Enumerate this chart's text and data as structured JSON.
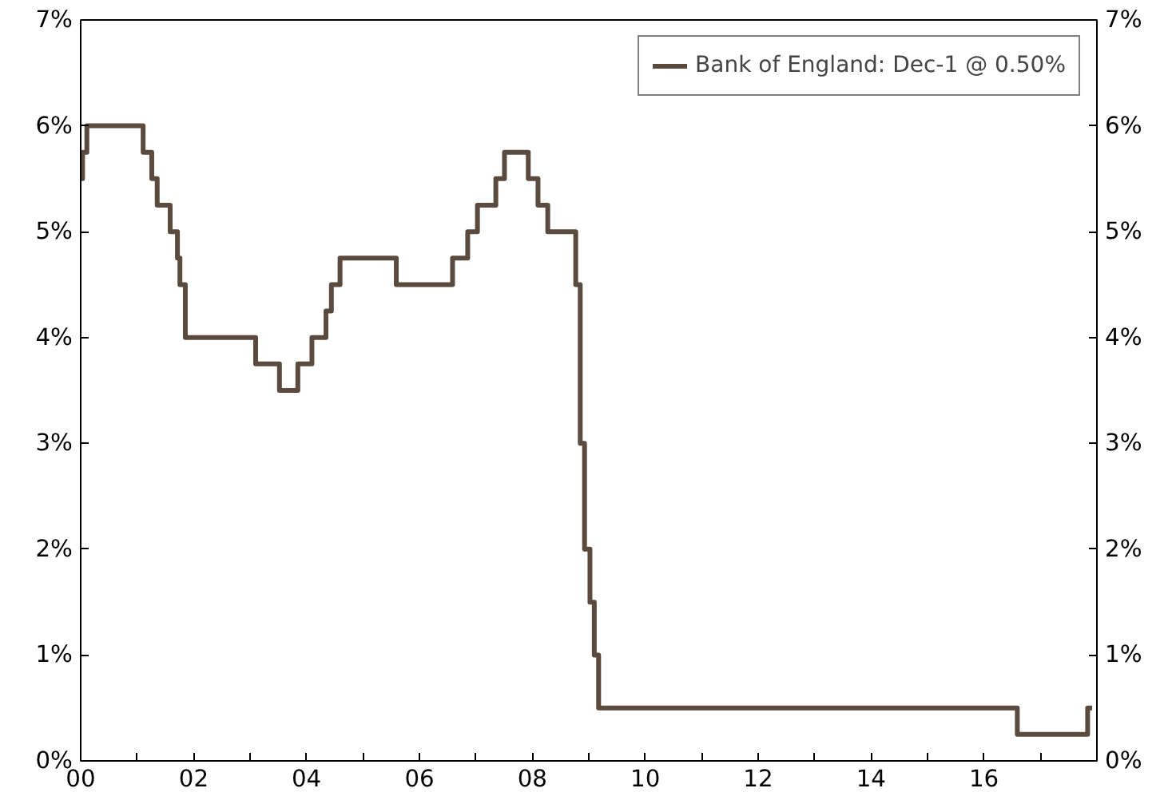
{
  "chart_data": {
    "type": "step",
    "legend": "top right",
    "grid": false,
    "xlim": [
      "2000-01-01",
      "2018-01-01"
    ],
    "xticks": [
      {
        "value": "2000-01-01",
        "label": "00"
      },
      {
        "value": "2001-01-01",
        "label": null
      },
      {
        "value": "2002-01-01",
        "label": "02"
      },
      {
        "value": "2003-01-01",
        "label": null
      },
      {
        "value": "2004-01-01",
        "label": "04"
      },
      {
        "value": "2005-01-01",
        "label": null
      },
      {
        "value": "2006-01-01",
        "label": "06"
      },
      {
        "value": "2007-01-01",
        "label": null
      },
      {
        "value": "2008-01-01",
        "label": "08"
      },
      {
        "value": "2009-01-01",
        "label": null
      },
      {
        "value": "2010-01-01",
        "label": "10"
      },
      {
        "value": "2011-01-01",
        "label": null
      },
      {
        "value": "2012-01-01",
        "label": "12"
      },
      {
        "value": "2013-01-01",
        "label": null
      },
      {
        "value": "2014-01-01",
        "label": "14"
      },
      {
        "value": "2015-01-01",
        "label": null
      },
      {
        "value": "2016-01-01",
        "label": "16"
      },
      {
        "value": "2017-01-01",
        "label": null
      }
    ],
    "ylim": [
      0,
      7
    ],
    "yticks": [
      {
        "value": 0,
        "label": "0%"
      },
      {
        "value": 1,
        "label": "1%"
      },
      {
        "value": 2,
        "label": "2%"
      },
      {
        "value": 3,
        "label": "3%"
      },
      {
        "value": 4,
        "label": "4%"
      },
      {
        "value": 5,
        "label": "5%"
      },
      {
        "value": 6,
        "label": "6%"
      },
      {
        "value": 7,
        "label": "7%"
      }
    ],
    "y2lim": [
      0,
      7
    ],
    "y2ticks": [
      {
        "value": 0,
        "label": "0%"
      },
      {
        "value": 1,
        "label": "1%"
      },
      {
        "value": 2,
        "label": "2%"
      },
      {
        "value": 3,
        "label": "3%"
      },
      {
        "value": 4,
        "label": "4%"
      },
      {
        "value": 5,
        "label": "5%"
      },
      {
        "value": 6,
        "label": "6%"
      },
      {
        "value": 7,
        "label": "7%"
      }
    ],
    "series": [
      {
        "name": "Bank of England: Dec-1 @ 0.50%",
        "color": "#5b4b3f",
        "x": [
          "2000-01-01",
          "2000-01-13",
          "2000-02-10",
          "2001-02-08",
          "2001-04-05",
          "2001-05-10",
          "2001-08-02",
          "2001-09-18",
          "2001-10-04",
          "2001-11-08",
          "2003-02-06",
          "2003-07-10",
          "2003-11-06",
          "2004-02-05",
          "2004-05-06",
          "2004-06-10",
          "2004-08-05",
          "2005-08-04",
          "2006-08-03",
          "2006-11-09",
          "2007-01-11",
          "2007-05-10",
          "2007-07-05",
          "2007-12-06",
          "2008-02-07",
          "2008-04-10",
          "2008-10-08",
          "2008-11-06",
          "2008-12-04",
          "2009-01-08",
          "2009-02-05",
          "2009-03-05",
          "2016-08-04",
          "2017-11-02",
          "2017-12-01"
        ],
        "values": [
          5.5,
          5.75,
          6.0,
          5.75,
          5.5,
          5.25,
          5.0,
          4.75,
          4.5,
          4.0,
          3.75,
          3.5,
          3.75,
          4.0,
          4.25,
          4.5,
          4.75,
          4.5,
          4.75,
          5.0,
          5.25,
          5.5,
          5.75,
          5.5,
          5.25,
          5.0,
          4.5,
          3.0,
          2.0,
          1.5,
          1.0,
          0.5,
          0.25,
          0.5,
          0.5
        ]
      }
    ]
  }
}
